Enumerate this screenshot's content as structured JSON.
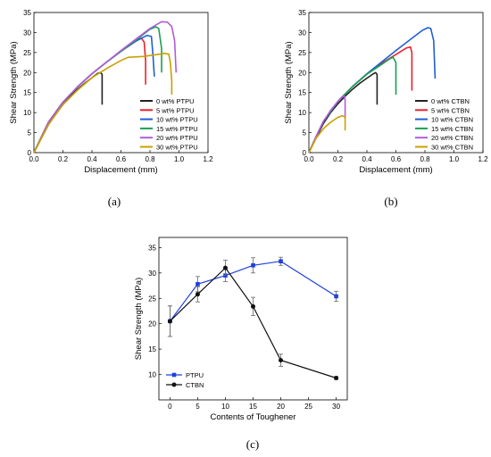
{
  "captions": [
    "(a)",
    "(b)",
    "(c)"
  ],
  "chart_data": [
    {
      "type": "line",
      "xlabel": "Displacement (mm)",
      "ylabel": "Shear Strength (MPa)",
      "xlim": [
        0,
        1.2
      ],
      "ylim": [
        0,
        35
      ],
      "xticks": [
        "0.0",
        "0.2",
        "0.4",
        "0.6",
        "0.8",
        "1.0",
        "1.2"
      ],
      "yticks": [
        "0",
        "5",
        "10",
        "15",
        "20",
        "25",
        "30",
        "35"
      ],
      "legend_position": "bottom-right",
      "series": [
        {
          "name": "0  wt% PTPU",
          "color": "#222222",
          "points": [
            [
              0,
              0
            ],
            [
              0.05,
              3.5
            ],
            [
              0.1,
              7
            ],
            [
              0.15,
              9.8
            ],
            [
              0.2,
              12
            ],
            [
              0.25,
              14
            ],
            [
              0.3,
              15.8
            ],
            [
              0.35,
              17.3
            ],
            [
              0.4,
              18.7
            ],
            [
              0.44,
              19.8
            ],
            [
              0.46,
              20
            ],
            [
              0.47,
              19.5
            ],
            [
              0.47,
              12
            ]
          ]
        },
        {
          "name": "5  wt% PTPU",
          "color": "#e8222c",
          "points": [
            [
              0,
              0
            ],
            [
              0.05,
              3.8
            ],
            [
              0.1,
              7.6
            ],
            [
              0.2,
              12.6
            ],
            [
              0.3,
              16.4
            ],
            [
              0.4,
              19.7
            ],
            [
              0.5,
              22.6
            ],
            [
              0.6,
              25.3
            ],
            [
              0.7,
              27.8
            ],
            [
              0.74,
              28.6
            ],
            [
              0.76,
              27.6
            ],
            [
              0.77,
              23
            ],
            [
              0.77,
              17
            ]
          ]
        },
        {
          "name": "10 wt% PTPU",
          "color": "#1f5fd6",
          "points": [
            [
              0,
              0
            ],
            [
              0.05,
              3.8
            ],
            [
              0.1,
              7.6
            ],
            [
              0.2,
              12.6
            ],
            [
              0.3,
              16.4
            ],
            [
              0.4,
              19.7
            ],
            [
              0.5,
              22.6
            ],
            [
              0.6,
              25.3
            ],
            [
              0.7,
              27.8
            ],
            [
              0.78,
              29.3
            ],
            [
              0.81,
              29
            ],
            [
              0.82,
              24.5
            ],
            [
              0.83,
              19
            ]
          ]
        },
        {
          "name": "15 wt% PTPU",
          "color": "#1aa050",
          "points": [
            [
              0,
              0
            ],
            [
              0.05,
              3.8
            ],
            [
              0.1,
              7.6
            ],
            [
              0.2,
              12.6
            ],
            [
              0.3,
              16.4
            ],
            [
              0.4,
              19.7
            ],
            [
              0.5,
              22.6
            ],
            [
              0.6,
              25.3
            ],
            [
              0.7,
              28
            ],
            [
              0.8,
              30.8
            ],
            [
              0.84,
              31.4
            ],
            [
              0.86,
              31
            ],
            [
              0.88,
              26
            ],
            [
              0.88,
              20
            ]
          ]
        },
        {
          "name": "20 wt% PTPU",
          "color": "#b05cd8",
          "points": [
            [
              0,
              0
            ],
            [
              0.05,
              3.8
            ],
            [
              0.1,
              7.6
            ],
            [
              0.2,
              12.6
            ],
            [
              0.3,
              16.4
            ],
            [
              0.4,
              19.7
            ],
            [
              0.5,
              22.6
            ],
            [
              0.6,
              25.5
            ],
            [
              0.7,
              28.3
            ],
            [
              0.8,
              31
            ],
            [
              0.88,
              32.7
            ],
            [
              0.92,
              32.6
            ],
            [
              0.95,
              31.5
            ],
            [
              0.97,
              28
            ],
            [
              0.98,
              20
            ]
          ]
        },
        {
          "name": "30 wt% PTPU",
          "color": "#c9a000",
          "points": [
            [
              0,
              0
            ],
            [
              0.05,
              3.5
            ],
            [
              0.1,
              7
            ],
            [
              0.2,
              12
            ],
            [
              0.3,
              15.6
            ],
            [
              0.4,
              18.7
            ],
            [
              0.5,
              21
            ],
            [
              0.6,
              23
            ],
            [
              0.65,
              23.8
            ],
            [
              0.75,
              24
            ],
            [
              0.85,
              24.5
            ],
            [
              0.9,
              24.8
            ],
            [
              0.93,
              24.6
            ],
            [
              0.94,
              22.5
            ],
            [
              0.95,
              18
            ],
            [
              0.95,
              14.5
            ]
          ]
        }
      ]
    },
    {
      "type": "line",
      "xlabel": "Displacement (mm)",
      "ylabel": "Shear Strength (MPa)",
      "xlim": [
        0,
        1.2
      ],
      "ylim": [
        0,
        35
      ],
      "xticks": [
        "0.0",
        "0.2",
        "0.4",
        "0.6",
        "0.8",
        "1.0",
        "1.2"
      ],
      "yticks": [
        "0",
        "5",
        "10",
        "15",
        "20",
        "25",
        "30",
        "35"
      ],
      "legend_position": "bottom-right",
      "series": [
        {
          "name": "0  wt% CTBN",
          "color": "#222222",
          "points": [
            [
              0,
              0
            ],
            [
              0.05,
              3.7
            ],
            [
              0.1,
              7.3
            ],
            [
              0.15,
              10
            ],
            [
              0.2,
              12.2
            ],
            [
              0.25,
              14.1
            ],
            [
              0.3,
              15.8
            ],
            [
              0.35,
              17.3
            ],
            [
              0.4,
              18.6
            ],
            [
              0.44,
              19.6
            ],
            [
              0.46,
              20
            ],
            [
              0.47,
              19.5
            ],
            [
              0.47,
              12
            ]
          ]
        },
        {
          "name": "5  wt% CTBN",
          "color": "#e8222c",
          "points": [
            [
              0,
              0
            ],
            [
              0.05,
              4
            ],
            [
              0.1,
              7.8
            ],
            [
              0.2,
              12.8
            ],
            [
              0.3,
              16.5
            ],
            [
              0.4,
              19.6
            ],
            [
              0.5,
              22.3
            ],
            [
              0.6,
              24.5
            ],
            [
              0.67,
              26.1
            ],
            [
              0.7,
              26.4
            ],
            [
              0.71,
              25
            ],
            [
              0.71,
              15.5
            ]
          ]
        },
        {
          "name": "10 wt% CTBN",
          "color": "#1f5fd6",
          "points": [
            [
              0,
              0
            ],
            [
              0.05,
              4
            ],
            [
              0.1,
              7.8
            ],
            [
              0.2,
              12.8
            ],
            [
              0.3,
              16.5
            ],
            [
              0.4,
              19.7
            ],
            [
              0.5,
              22.6
            ],
            [
              0.6,
              25.5
            ],
            [
              0.7,
              28.3
            ],
            [
              0.78,
              30.5
            ],
            [
              0.82,
              31.2
            ],
            [
              0.84,
              31
            ],
            [
              0.86,
              28
            ],
            [
              0.87,
              18.5
            ]
          ]
        },
        {
          "name": "15 wt% CTBN",
          "color": "#1aa050",
          "points": [
            [
              0,
              0
            ],
            [
              0.05,
              4
            ],
            [
              0.1,
              7.8
            ],
            [
              0.2,
              12.8
            ],
            [
              0.3,
              16.5
            ],
            [
              0.4,
              19.6
            ],
            [
              0.5,
              22
            ],
            [
              0.56,
              23.5
            ],
            [
              0.58,
              23.8
            ],
            [
              0.6,
              22.5
            ],
            [
              0.6,
              14.5
            ]
          ]
        },
        {
          "name": "20 wt% CTBN",
          "color": "#b05cd8",
          "points": [
            [
              0,
              0
            ],
            [
              0.05,
              4
            ],
            [
              0.1,
              7.8
            ],
            [
              0.15,
              10.6
            ],
            [
              0.2,
              12.8
            ],
            [
              0.23,
              14
            ],
            [
              0.245,
              14.1
            ],
            [
              0.25,
              13
            ],
            [
              0.25,
              8.5
            ]
          ]
        },
        {
          "name": "30 wt% CTBN",
          "color": "#c9a000",
          "points": [
            [
              0,
              0
            ],
            [
              0.05,
              3.6
            ],
            [
              0.1,
              6
            ],
            [
              0.15,
              7.6
            ],
            [
              0.2,
              8.8
            ],
            [
              0.23,
              9.2
            ],
            [
              0.25,
              8.9
            ],
            [
              0.25,
              5.5
            ]
          ]
        }
      ]
    },
    {
      "type": "line",
      "xlabel": "Contents of Toughener",
      "ylabel": "Shear Strength (MPa)",
      "xlim": [
        -2,
        32
      ],
      "ylim": [
        5,
        37
      ],
      "xticks": [
        "0",
        "5",
        "10",
        "15",
        "20",
        "25",
        "30"
      ],
      "yticks": [
        "10",
        "15",
        "20",
        "25",
        "30",
        "35"
      ],
      "legend_position": "bottom-left",
      "series": [
        {
          "name": "PTPU",
          "color": "#1f3fe0",
          "marker": "square",
          "x": [
            0,
            5,
            10,
            15,
            20,
            30
          ],
          "values": [
            20.5,
            27.8,
            29.5,
            31.5,
            32.3,
            25.4
          ],
          "errors": [
            3.0,
            1.5,
            1.2,
            1.5,
            0.8,
            1.0
          ]
        },
        {
          "name": "CTBN",
          "color": "#111111",
          "marker": "circle",
          "x": [
            0,
            5,
            10,
            15,
            20,
            30
          ],
          "values": [
            20.5,
            25.8,
            31.0,
            23.4,
            12.8,
            9.3
          ],
          "errors": [
            3.0,
            1.5,
            1.5,
            1.8,
            1.2,
            0.3
          ]
        }
      ]
    }
  ]
}
